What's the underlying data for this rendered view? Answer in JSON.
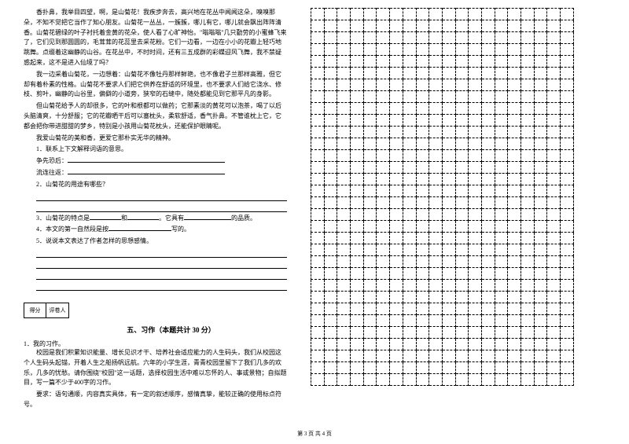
{
  "leftColumn": {
    "paragraphs": [
      "香扑鼻，我举目四望，啊，是山菊花！我疾步奔去，高兴地在花丛中闻闻这朵，嗅嗅那朵，不知不觉把它当作了知心朋友。山菊花一丛丛，一簇簇，哪儿有它，哪儿就会飘出阵阵清香。山菊花碧绿的叶子衬托着金黄的花朵，使人看了心旷神怡。\"嗡嗡嗡\"几只勤劳的小蜜蜂飞来了，它们见到那圆圆的，毛茸茸的花蕊里去采花粉。它们一边看，一边在小小的花瓣上轻巧地跳舞。点缀着这幽静的山谷。在花丛中，不时时间，还有三五成群的彩蝶迎风飞舞，我不禁疑惑起来，这不是进入仙境了吗？",
      "我一边采着山菊花，一边想着：山菊花不像牡丹那样鲜艳，也不像君子兰那样高雅，但它却有着朴素的性格。山菊花不要求人们把它供养在舒适的环境里，也不要求人们给它浇水、修枝、剪叶，幽静的山谷里，偏僻的小道旁，狭窄的石缝中，随处都能见到它那平凡的身影。",
      "但山菊花给予人的却很多，它的叶和根都可以做药；它那素淡的黄花可以泡茶，喝了以后头脑清爽，十分舒服；它的花瓣晒干后可以塞枕头，柔软舒适，香气扑鼻。不管谁枕上它，它都会把你带进甜甜的梦乡，特别是小孩用山菊花枕头，还能保护眼睛呢。",
      "我爱山菊花的美和香，更爱它那朴实无华的精神。"
    ],
    "questions": {
      "q1": "1．联系上下文解释词语的意思。",
      "q1_sub1": "争先恐后：",
      "q1_sub2": "流连往返：",
      "q2": "2．山菊花的用途有哪些？",
      "q3_pre": "3．山菊花的特点是",
      "q3_mid": "和",
      "q3_mid2": "。它具有",
      "q3_end": "的品质。",
      "q4_pre": "4．本文的第一自然段是按",
      "q4_end": "写的。",
      "q5": "5．说说本文表达了作者怎样的思想感情。"
    },
    "sectionHeader": {
      "scoreLabel": "得分",
      "graderLabel": "评卷人",
      "title": "五、习作（本题共计 30 分）"
    },
    "writing": {
      "title": "1．我的习作。",
      "content": "校园是我们积累知识能量、增长见识才干、培养社会适应能力的人生码头，我们从校园这个人生码头起锚，开着人生之船扬帆远航。六年的小学生涯，青青校园里留下了我们几多的欢乐，几多的忧愁。请你围绕\"校园\"这一话题，选择校园生活中难以忘怀的人、事或景物；自拟题目，写一篇不少于400字的习作。",
      "requirement": "要求：语句通顺，内容真实具体，有一定的叙述顺序，感情真挚，能较正确的使用标点符号。"
    }
  },
  "grid": {
    "rows": 32,
    "cols": 20
  },
  "footer": "第 3 页 共 4 页"
}
